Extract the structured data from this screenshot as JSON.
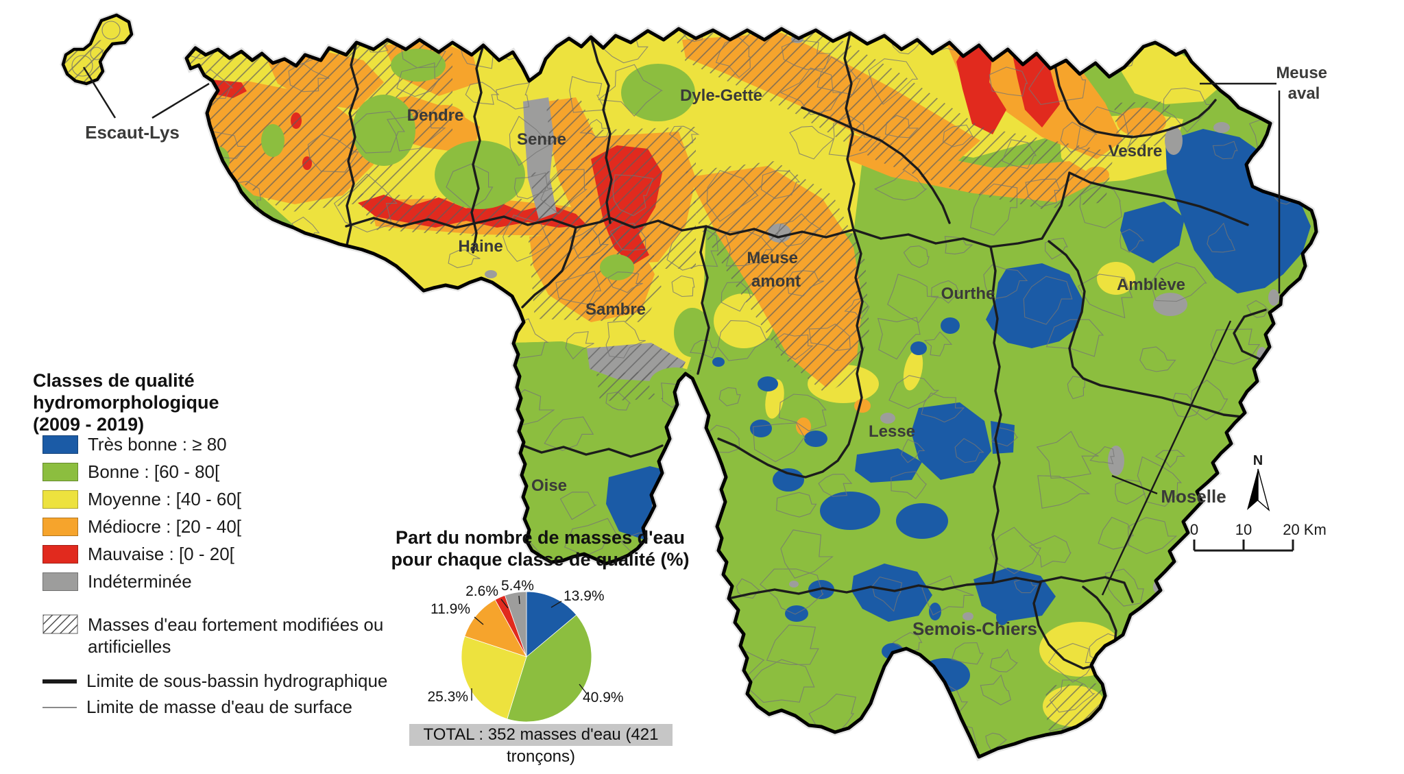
{
  "map": {
    "basin_labels": [
      {
        "id": "escaut-lys",
        "text": "Escaut-Lys"
      },
      {
        "id": "dendre",
        "text": "Dendre"
      },
      {
        "id": "senne",
        "text": "Senne"
      },
      {
        "id": "dyle-gette",
        "text": "Dyle-Gette"
      },
      {
        "id": "haine",
        "text": "Haine"
      },
      {
        "id": "sambre",
        "text": "Sambre"
      },
      {
        "id": "meuse-amont",
        "line1": "Meuse",
        "line2": "amont"
      },
      {
        "id": "oise",
        "text": "Oise"
      },
      {
        "id": "lesse",
        "text": "Lesse"
      },
      {
        "id": "ourthe",
        "text": "Ourthe"
      },
      {
        "id": "ambleve",
        "text": "Amblève"
      },
      {
        "id": "vesdre",
        "text": "Vesdre"
      },
      {
        "id": "meuse-aval",
        "line1": "Meuse",
        "line2": "aval"
      },
      {
        "id": "semois-chiers",
        "text": "Semois-Chiers"
      },
      {
        "id": "moselle",
        "text": "Moselle"
      }
    ]
  },
  "legend": {
    "title_line1": "Classes de qualité hydromorphologique",
    "title_line2": "(2009 - 2019)",
    "items": [
      {
        "label": "Très bonne : ≥ 80",
        "color": "#1B5BA6"
      },
      {
        "label": "Bonne : [60 - 80[",
        "color": "#8CBE3F"
      },
      {
        "label": "Moyenne : [40 - 60[",
        "color": "#EDE23E"
      },
      {
        "label": "Médiocre : [20 - 40[",
        "color": "#F6A42C"
      },
      {
        "label": "Mauvaise : [0 - 20[",
        "color": "#E12A1E"
      },
      {
        "label": "Indéterminée",
        "color": "#9D9D9C"
      }
    ],
    "hatch_item_line1": "Masses d'eau fortement modifiées ou",
    "hatch_item_line2": "artificielles",
    "line_items": [
      {
        "label": "Limite de sous-bassin hydrographique",
        "style": "thick"
      },
      {
        "label": "Limite de masse d'eau de surface",
        "style": "thin"
      }
    ]
  },
  "chart_data": {
    "type": "pie",
    "title": "Part du nombre de masses d'eau pour chaque classe de qualité (%)",
    "labels": [
      "Très bonne",
      "Bonne",
      "Moyenne",
      "Médiocre",
      "Mauvaise",
      "Indéterminée"
    ],
    "values": [
      13.9,
      40.9,
      25.3,
      11.9,
      2.6,
      5.4
    ],
    "colors": [
      "#1B5BA6",
      "#8CBE3F",
      "#EDE23E",
      "#F6A42C",
      "#E12A1E",
      "#9D9D9C"
    ],
    "start_angle_deg": 0,
    "direction": "clockwise",
    "total_label": "TOTAL : 352 masses d'eau (421 tronçons)"
  },
  "scale_bar": {
    "labels": [
      "0",
      "10",
      "20 Km"
    ]
  },
  "north_arrow": {
    "label": "N"
  }
}
